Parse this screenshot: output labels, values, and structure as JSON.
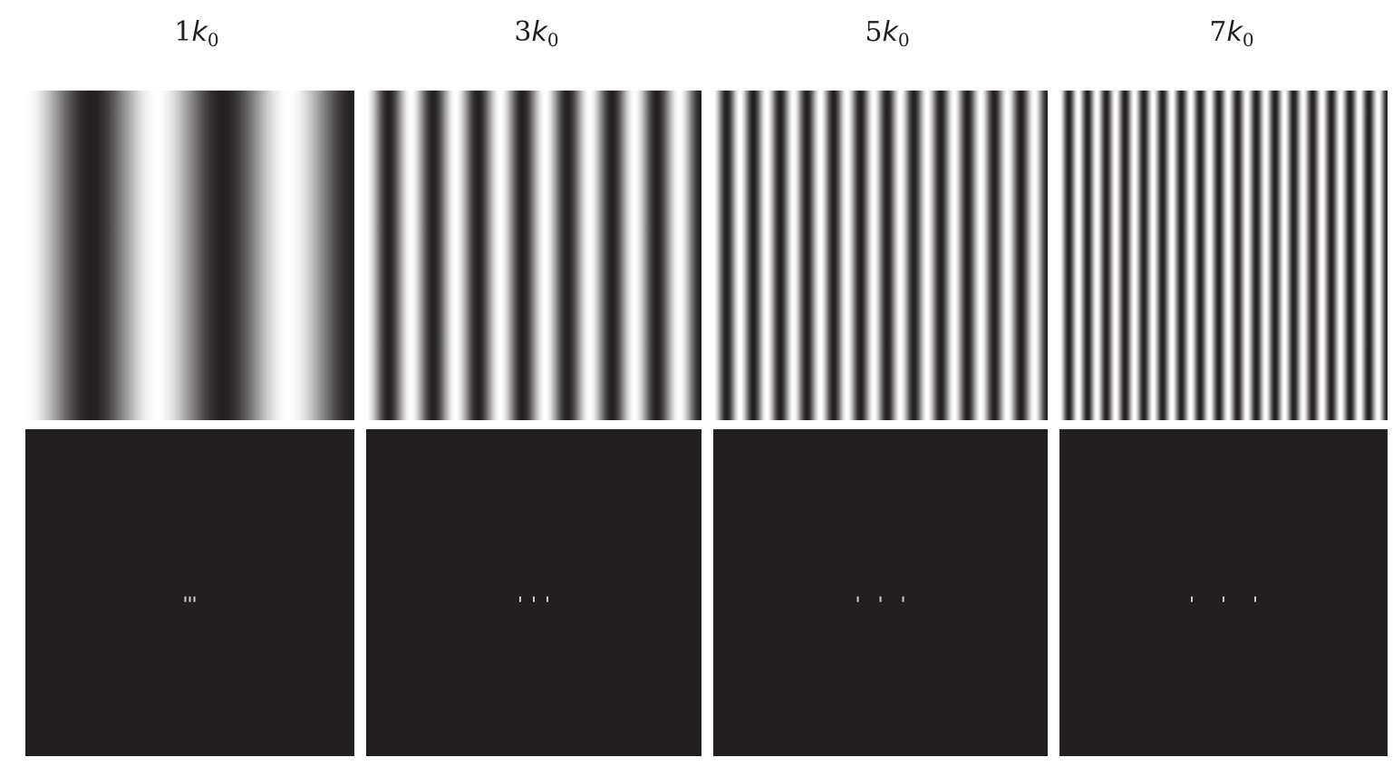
{
  "columns": [
    {
      "multiplier": "1",
      "symbol": "k",
      "subscript": "0",
      "frequency": 1
    },
    {
      "multiplier": "3",
      "symbol": "k",
      "subscript": "0",
      "frequency": 3
    },
    {
      "multiplier": "5",
      "symbol": "k",
      "subscript": "0",
      "frequency": 5
    },
    {
      "multiplier": "7",
      "symbol": "k",
      "subscript": "0",
      "frequency": 7
    }
  ],
  "colors": {
    "dark": "#231f20",
    "light": "#ffffff",
    "spot": "#cfcfcf"
  }
}
